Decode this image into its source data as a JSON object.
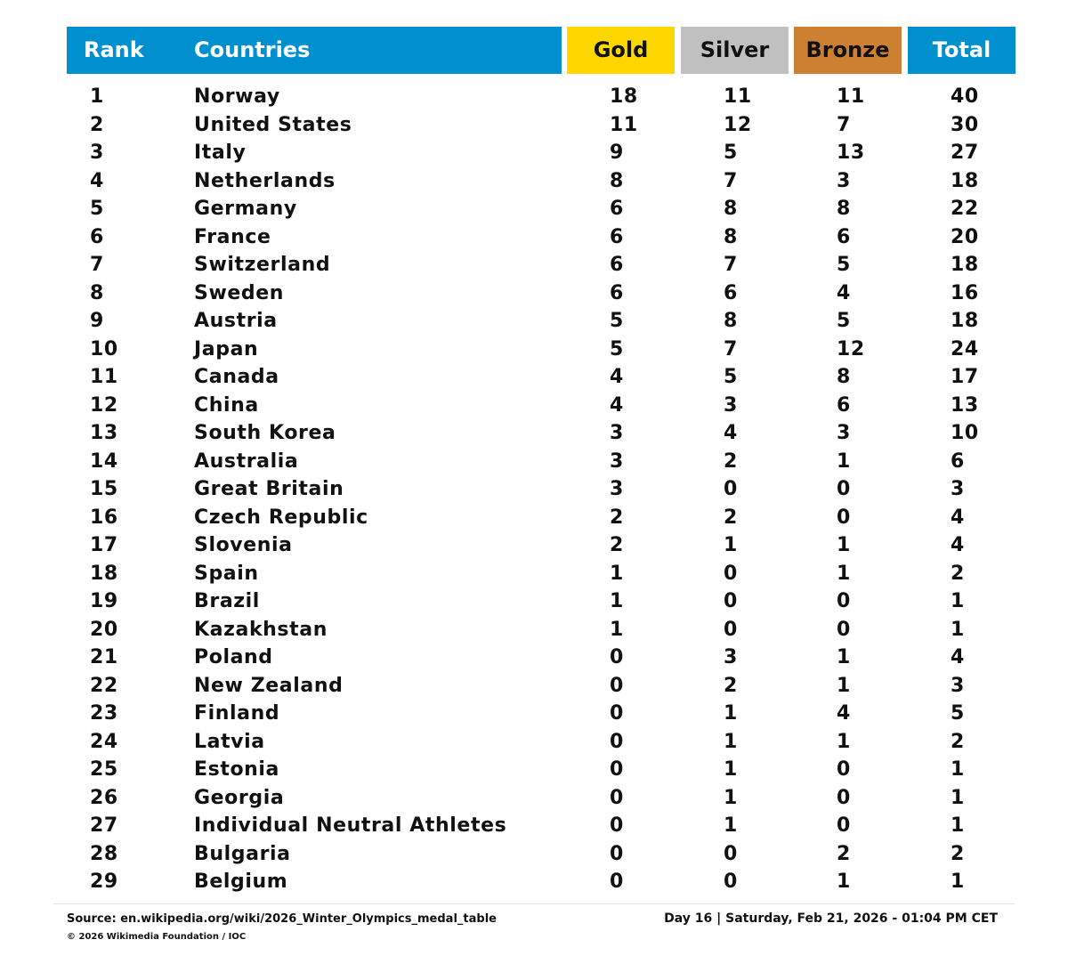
{
  "colors": {
    "header_blue": "#0090d0",
    "gold": "#ffd700",
    "silver": "#c0c0c0",
    "bronze": "#cd7f32"
  },
  "header": {
    "rank": "Rank",
    "countries": "Countries",
    "gold": "Gold",
    "silver": "Silver",
    "bronze": "Bronze",
    "total": "Total"
  },
  "chart_data": {
    "type": "table",
    "columns": [
      "Rank",
      "Countries",
      "Gold",
      "Silver",
      "Bronze",
      "Total"
    ],
    "rows": [
      {
        "rank": "1",
        "country": "Norway",
        "gold": 18,
        "silver": 11,
        "bronze": 11,
        "total": 40
      },
      {
        "rank": "2",
        "country": "United States",
        "gold": 11,
        "silver": 12,
        "bronze": 7,
        "total": 30
      },
      {
        "rank": "3",
        "country": "Italy",
        "gold": 9,
        "silver": 5,
        "bronze": 13,
        "total": 27
      },
      {
        "rank": "4",
        "country": "Netherlands",
        "gold": 8,
        "silver": 7,
        "bronze": 3,
        "total": 18
      },
      {
        "rank": "5",
        "country": "Germany",
        "gold": 6,
        "silver": 8,
        "bronze": 8,
        "total": 22
      },
      {
        "rank": "6",
        "country": "France",
        "gold": 6,
        "silver": 8,
        "bronze": 6,
        "total": 20
      },
      {
        "rank": "7",
        "country": "Switzerland",
        "gold": 6,
        "silver": 7,
        "bronze": 5,
        "total": 18
      },
      {
        "rank": "8",
        "country": "Sweden",
        "gold": 6,
        "silver": 6,
        "bronze": 4,
        "total": 16
      },
      {
        "rank": "9",
        "country": "Austria",
        "gold": 5,
        "silver": 8,
        "bronze": 5,
        "total": 18
      },
      {
        "rank": "10",
        "country": "Japan",
        "gold": 5,
        "silver": 7,
        "bronze": 12,
        "total": 24
      },
      {
        "rank": "11",
        "country": "Canada",
        "gold": 4,
        "silver": 5,
        "bronze": 8,
        "total": 17
      },
      {
        "rank": "12",
        "country": "China",
        "gold": 4,
        "silver": 3,
        "bronze": 6,
        "total": 13
      },
      {
        "rank": "13",
        "country": "South Korea",
        "gold": 3,
        "silver": 4,
        "bronze": 3,
        "total": 10
      },
      {
        "rank": "14",
        "country": "Australia",
        "gold": 3,
        "silver": 2,
        "bronze": 1,
        "total": 6
      },
      {
        "rank": "15",
        "country": "Great Britain",
        "gold": 3,
        "silver": 0,
        "bronze": 0,
        "total": 3
      },
      {
        "rank": "16",
        "country": "Czech Republic",
        "gold": 2,
        "silver": 2,
        "bronze": 0,
        "total": 4
      },
      {
        "rank": "17",
        "country": "Slovenia",
        "gold": 2,
        "silver": 1,
        "bronze": 1,
        "total": 4
      },
      {
        "rank": "18",
        "country": "Spain",
        "gold": 1,
        "silver": 0,
        "bronze": 1,
        "total": 2
      },
      {
        "rank": "19",
        "country": "Brazil",
        "gold": 1,
        "silver": 0,
        "bronze": 0,
        "total": 1
      },
      {
        "rank": "20",
        "country": "Kazakhstan",
        "gold": 1,
        "silver": 0,
        "bronze": 0,
        "total": 1
      },
      {
        "rank": "21",
        "country": "Poland",
        "gold": 0,
        "silver": 3,
        "bronze": 1,
        "total": 4
      },
      {
        "rank": "22",
        "country": "New Zealand",
        "gold": 0,
        "silver": 2,
        "bronze": 1,
        "total": 3
      },
      {
        "rank": "23",
        "country": "Finland",
        "gold": 0,
        "silver": 1,
        "bronze": 4,
        "total": 5
      },
      {
        "rank": "24",
        "country": "Latvia",
        "gold": 0,
        "silver": 1,
        "bronze": 1,
        "total": 2
      },
      {
        "rank": "25",
        "country": "Estonia",
        "gold": 0,
        "silver": 1,
        "bronze": 0,
        "total": 1
      },
      {
        "rank": "26",
        "country": "Georgia",
        "gold": 0,
        "silver": 1,
        "bronze": 0,
        "total": 1
      },
      {
        "rank": "27",
        "country": "Individual Neutral Athletes",
        "gold": 0,
        "silver": 1,
        "bronze": 0,
        "total": 1
      },
      {
        "rank": "28",
        "country": "Bulgaria",
        "gold": 0,
        "silver": 0,
        "bronze": 2,
        "total": 2
      },
      {
        "rank": "29",
        "country": "Belgium",
        "gold": 0,
        "silver": 0,
        "bronze": 1,
        "total": 1
      }
    ]
  },
  "footer": {
    "source": "Source: en.wikipedia.org/wiki/2026_Winter_Olympics_medal_table",
    "copyright": "© 2026 Wikimedia Foundation / IOC",
    "date": "Day 16 | Saturday, Feb 21, 2026 - 01:04 PM CET"
  }
}
